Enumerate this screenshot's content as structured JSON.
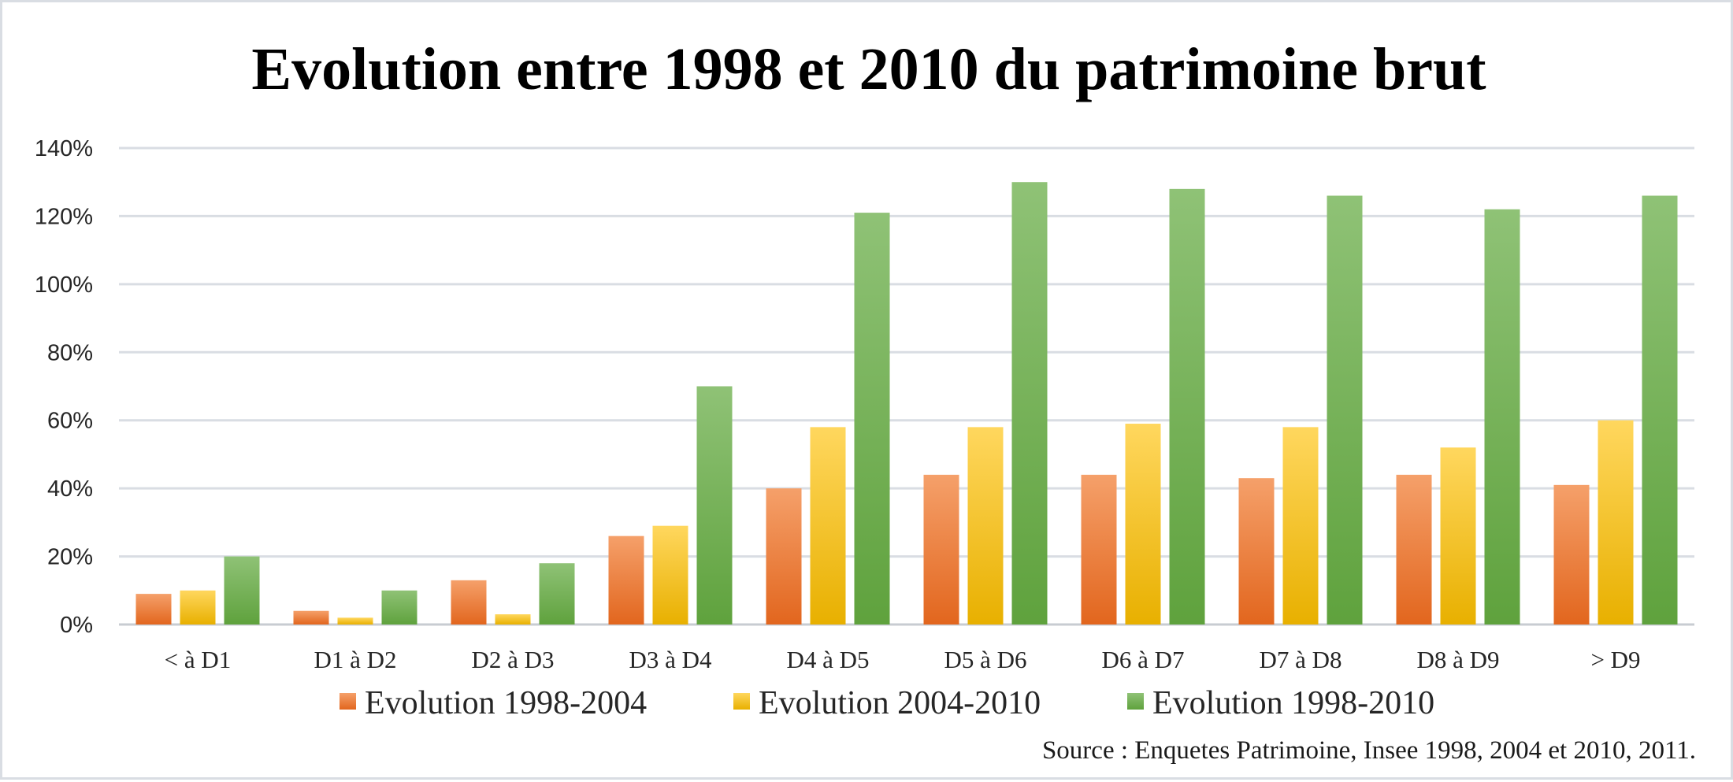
{
  "chart_data": {
    "type": "bar",
    "title": "Evolution entre 1998 et 2010 du patrimoine brut",
    "categories": [
      "< à D1",
      "D1 à D2",
      "D2 à D3",
      "D3 à D4",
      "D4 à D5",
      "D5 à D6",
      "D6 à D7",
      "D7 à D8",
      "D8 à D9",
      "> D9"
    ],
    "series": [
      {
        "name": "Evolution 1998-2004",
        "color_top": "#f5a06a",
        "color_bottom": "#e2661e",
        "values": [
          9,
          4,
          13,
          26,
          40,
          44,
          44,
          43,
          44,
          41
        ]
      },
      {
        "name": "Evolution 2004-2010",
        "color_top": "#ffd75e",
        "color_bottom": "#e8b000",
        "values": [
          10,
          2,
          3,
          29,
          58,
          58,
          59,
          58,
          52,
          60
        ]
      },
      {
        "name": "Evolution 1998-2010",
        "color_top": "#8fc276",
        "color_bottom": "#5fa23d",
        "values": [
          20,
          10,
          18,
          70,
          121,
          130,
          128,
          126,
          122,
          126
        ]
      }
    ],
    "ylim": [
      0,
      140
    ],
    "yticks": [
      0,
      20,
      40,
      60,
      80,
      100,
      120,
      140
    ],
    "ytick_labels": [
      "0%",
      "20%",
      "40%",
      "60%",
      "80%",
      "100%",
      "120%",
      "140%"
    ],
    "xlabel": "",
    "ylabel": "",
    "grid": true,
    "legend_position": "bottom",
    "source": "Source : Enquetes Patrimoine, Insee 1998, 2004 et 2010, 2011."
  }
}
